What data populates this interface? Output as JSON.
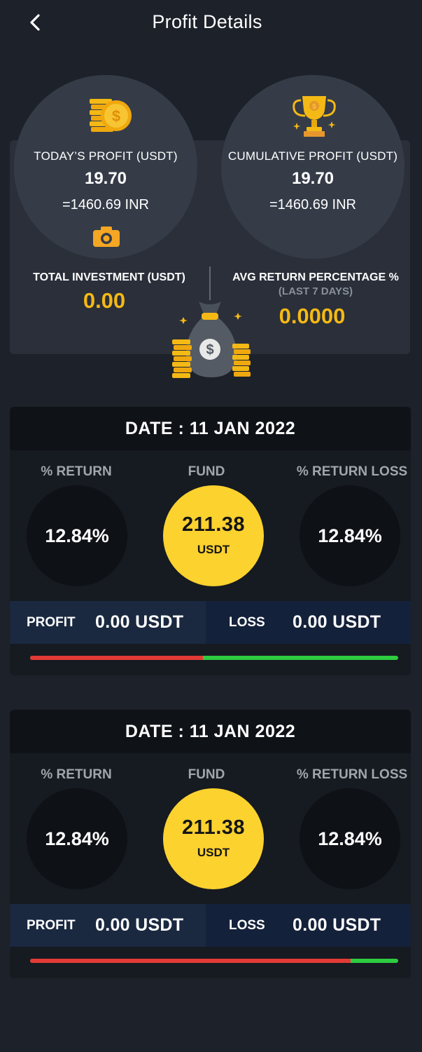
{
  "header": {
    "title": "Profit Details"
  },
  "summary": {
    "today_profit": {
      "label": "TODAY’S PROFIT (USDT)",
      "value": "19.70",
      "inr": "=1460.69 INR"
    },
    "cumulative_profit": {
      "label": "CUMULATIVE PROFIT (USDT)",
      "value": "19.70",
      "inr": "=1460.69 INR"
    },
    "total_investment": {
      "label": "TOTAL INVESTMENT (USDT)",
      "value": "0.00"
    },
    "avg_return": {
      "label": "AVG RETURN PERCENTAGE %",
      "sublabel": "(LAST 7 DAYS)",
      "value": "0.0000"
    }
  },
  "records": [
    {
      "date": "DATE : 11 JAN 2022",
      "return_label": "% RETURN",
      "fund_label": "FUND",
      "return_loss_label": "% RETURN LOSS",
      "return_pct": "12.84%",
      "fund_value": "211.38",
      "fund_unit": "USDT",
      "return_loss_pct": "12.84%",
      "profit_label": "PROFIT",
      "profit_value": "0.00 USDT",
      "loss_label": "LOSS",
      "loss_value": "0.00 USDT",
      "loss_fraction": 0.47
    },
    {
      "date": "DATE : 11 JAN 2022",
      "return_label": "% RETURN",
      "fund_label": "FUND",
      "return_loss_label": "% RETURN LOSS",
      "return_pct": "12.84%",
      "fund_value": "211.38",
      "fund_unit": "USDT",
      "return_loss_pct": "12.84%",
      "profit_label": "PROFIT",
      "profit_value": "0.00 USDT",
      "loss_label": "LOSS",
      "loss_value": "0.00 USDT",
      "loss_fraction": 0.87
    }
  ],
  "colors": {
    "accent_gold": "#f5b915",
    "fund_yellow": "#fcd22f",
    "loss_red": "#e23b36",
    "profit_green": "#2ecc40",
    "background": "#1d2129"
  },
  "icons": [
    "back-arrow-icon",
    "gold-coins-icon",
    "trophy-icon",
    "camera-icon",
    "money-bag-icon"
  ]
}
